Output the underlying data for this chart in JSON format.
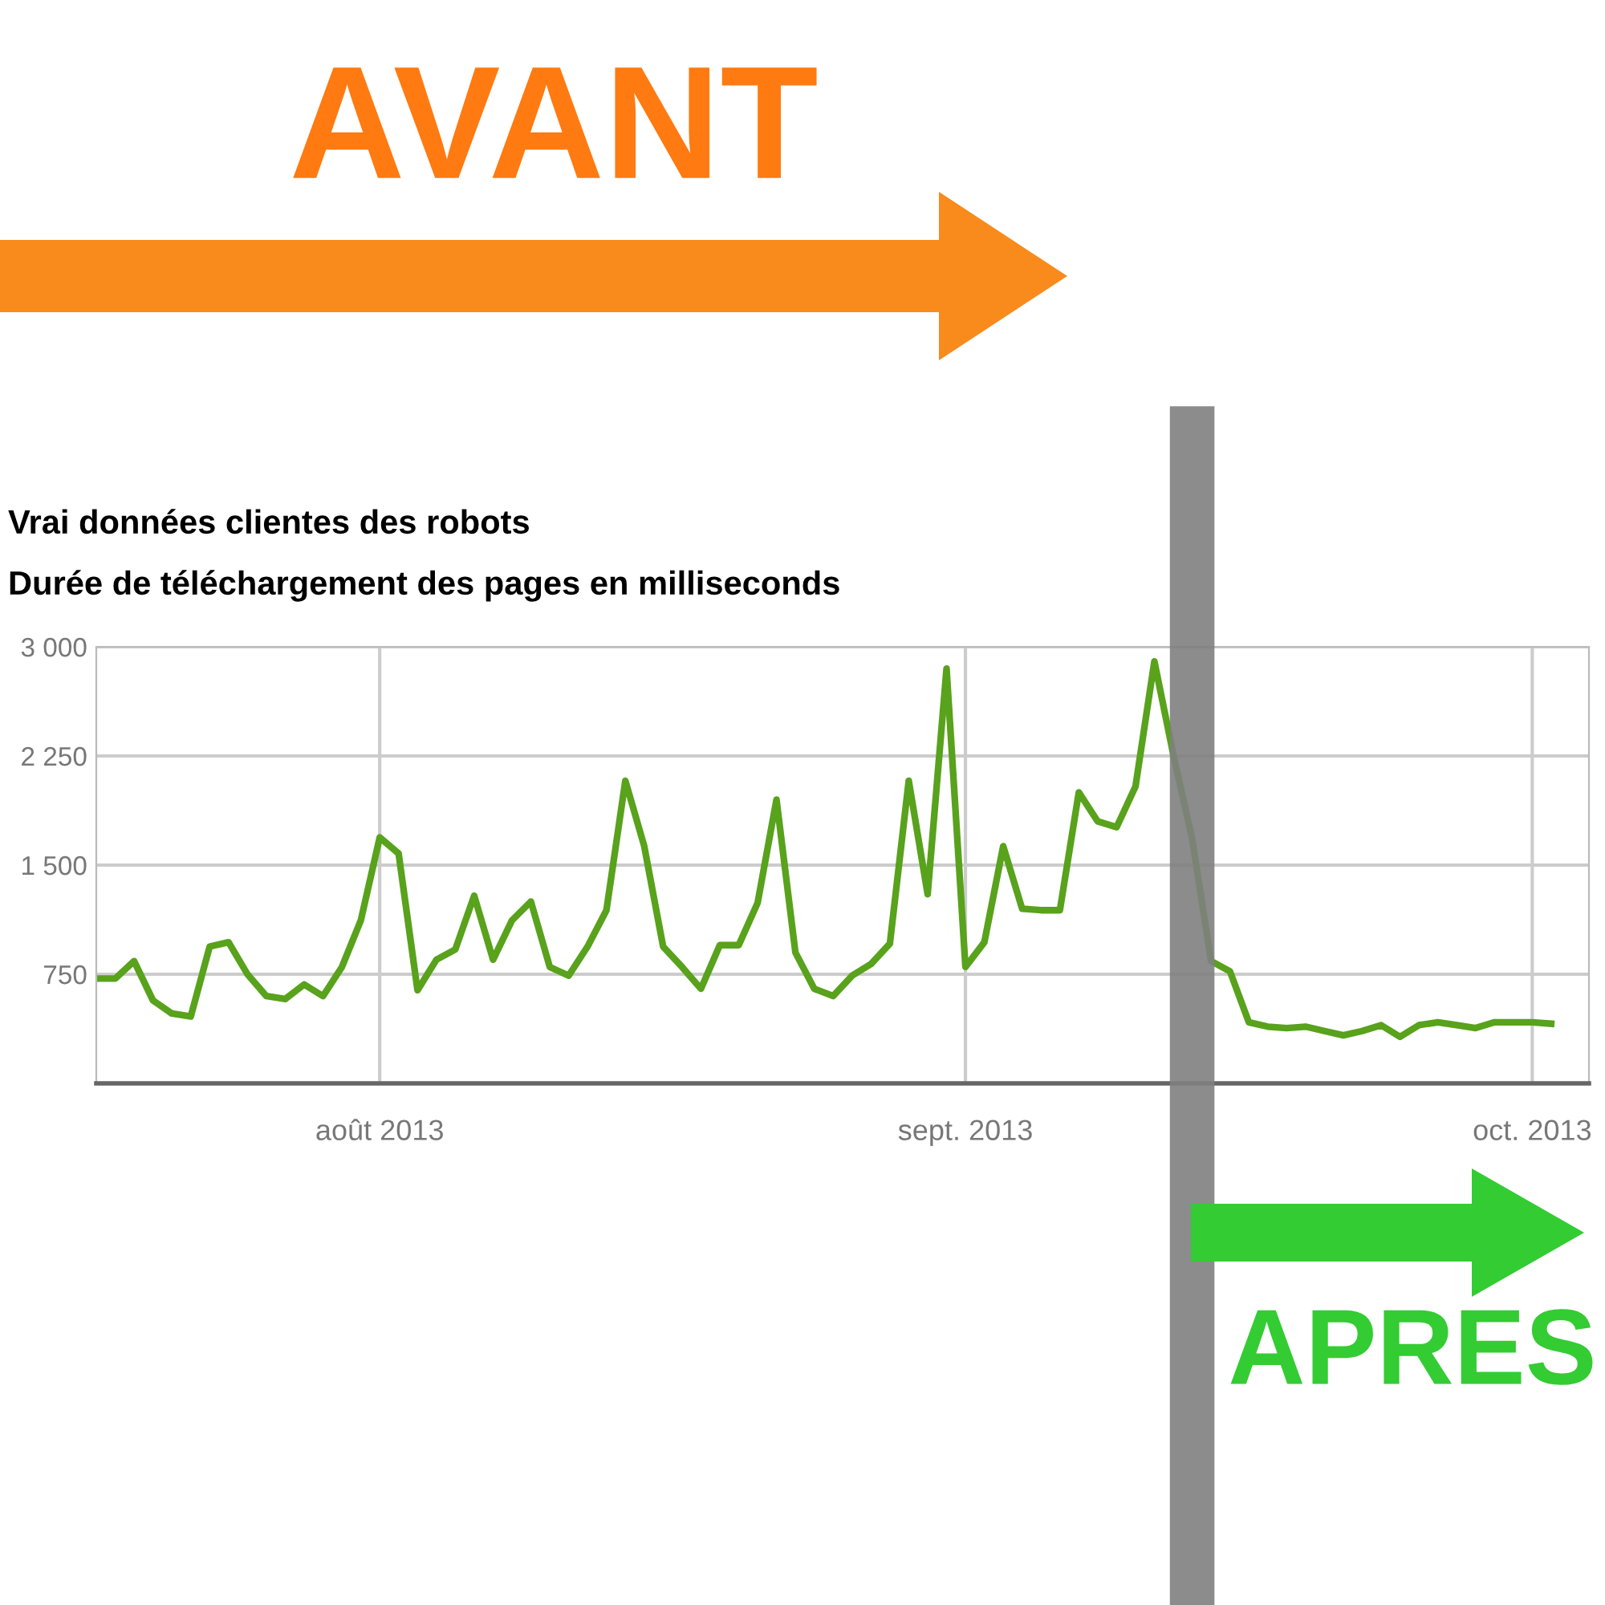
{
  "chart_data": {
    "type": "line",
    "title": "Vrai données clientes des robots",
    "subtitle": "Durée de téléchargement des pages en milliseconds",
    "x": [
      "2013-07-17",
      "2013-07-18",
      "2013-07-19",
      "2013-07-20",
      "2013-07-21",
      "2013-07-22",
      "2013-07-23",
      "2013-07-24",
      "2013-07-25",
      "2013-07-26",
      "2013-07-27",
      "2013-07-28",
      "2013-07-29",
      "2013-07-30",
      "2013-07-31",
      "2013-08-01",
      "2013-08-02",
      "2013-08-03",
      "2013-08-04",
      "2013-08-05",
      "2013-08-06",
      "2013-08-07",
      "2013-08-08",
      "2013-08-09",
      "2013-08-10",
      "2013-08-11",
      "2013-08-12",
      "2013-08-13",
      "2013-08-14",
      "2013-08-15",
      "2013-08-16",
      "2013-08-17",
      "2013-08-18",
      "2013-08-19",
      "2013-08-20",
      "2013-08-21",
      "2013-08-22",
      "2013-08-23",
      "2013-08-24",
      "2013-08-25",
      "2013-08-26",
      "2013-08-27",
      "2013-08-28",
      "2013-08-29",
      "2013-08-30",
      "2013-08-31",
      "2013-09-01",
      "2013-09-02",
      "2013-09-03",
      "2013-09-04",
      "2013-09-05",
      "2013-09-06",
      "2013-09-07",
      "2013-09-08",
      "2013-09-09",
      "2013-09-10",
      "2013-09-11",
      "2013-09-12",
      "2013-09-13",
      "2013-09-14",
      "2013-09-15",
      "2013-09-16",
      "2013-09-17",
      "2013-09-18",
      "2013-09-19",
      "2013-09-20",
      "2013-09-21",
      "2013-09-22",
      "2013-09-23",
      "2013-09-24",
      "2013-09-25",
      "2013-09-26",
      "2013-09-27",
      "2013-09-28",
      "2013-09-29",
      "2013-09-30",
      "2013-10-01",
      "2013-10-02"
    ],
    "series": [
      {
        "color": "#58a21c",
        "values": [
          720,
          720,
          840,
          570,
          480,
          460,
          940,
          970,
          750,
          600,
          580,
          680,
          600,
          800,
          1120,
          1690,
          1580,
          640,
          850,
          920,
          1290,
          850,
          1120,
          1250,
          800,
          740,
          940,
          1190,
          2080,
          1630,
          940,
          800,
          650,
          950,
          950,
          1240,
          1950,
          900,
          650,
          600,
          740,
          820,
          960,
          2080,
          1300,
          2850,
          800,
          970,
          1630,
          1200,
          1190,
          1190,
          2000,
          1800,
          1760,
          2040,
          2900,
          2260,
          1680,
          840,
          770,
          420,
          390,
          380,
          390,
          360,
          330,
          360,
          400,
          320,
          400,
          420,
          400,
          380,
          420,
          420,
          420,
          410
        ]
      }
    ],
    "xlim": [
      "2013-07-17",
      "2013-10-04"
    ],
    "xticks": [
      {
        "value": "2013-08-01",
        "label": "août 2013"
      },
      {
        "value": "2013-09-01",
        "label": "sept. 2013"
      },
      {
        "value": "2013-10-01",
        "label": "oct. 2013"
      }
    ],
    "ylim": [
      0,
      3000
    ],
    "yticks": [
      {
        "value": 750,
        "label": "750"
      },
      {
        "value": 1500,
        "label": "1 500"
      },
      {
        "value": 2250,
        "label": "2 250"
      },
      {
        "value": 3000,
        "label": "3 000"
      }
    ],
    "grid": true,
    "marker": "none",
    "line_style": "solid",
    "ref_lines": [
      {
        "axis": "x",
        "value": "2013-09-13",
        "color": "#808080"
      }
    ],
    "annotations": [
      "AVANT",
      "APRES"
    ]
  }
}
